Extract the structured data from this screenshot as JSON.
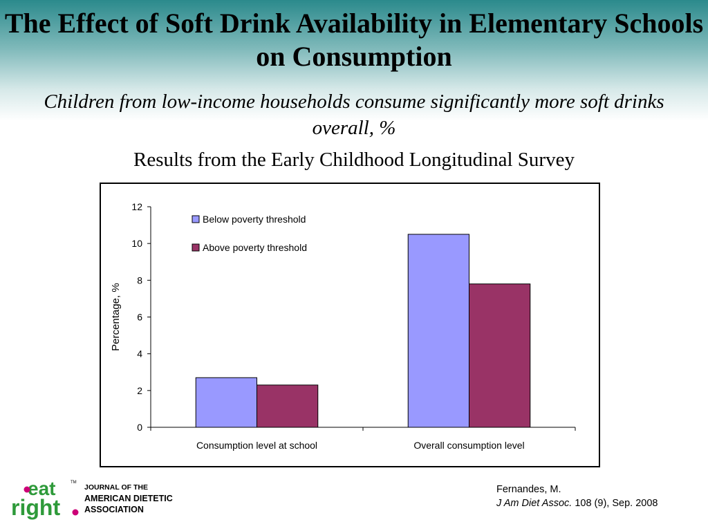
{
  "slide": {
    "title": "The Effect of Soft Drink Availability in Elementary Schools on Consumption",
    "subtitle": "Children from low-income households consume significantly more soft drinks overall, %",
    "caption": "Results from the Early Childhood Longitudinal Survey"
  },
  "colors": {
    "series_below": "#9999ff",
    "series_above": "#993366",
    "header_teal": "#2b8a8c",
    "logo_green": "#2e9a3a",
    "logo_magenta": "#cc0077"
  },
  "chart_data": {
    "type": "bar",
    "title": "",
    "xlabel": "",
    "ylabel": "Percentage, %",
    "ylim": [
      0,
      12
    ],
    "yticks": [
      0,
      2,
      4,
      6,
      8,
      10,
      12
    ],
    "categories": [
      "Consumption level at school",
      "Overall consumption level"
    ],
    "series": [
      {
        "name": "Below poverty threshold",
        "values": [
          2.7,
          10.5
        ]
      },
      {
        "name": "Above poverty threshold",
        "values": [
          2.3,
          7.8
        ]
      }
    ],
    "legend_position": "top-left",
    "grid": false
  },
  "footer": {
    "logo_text_top": "eat",
    "logo_text_bottom": "right",
    "logo_tm": "TM",
    "journal_line1": "JOURNAL OF THE",
    "journal_line2": "AMERICAN DIETETIC",
    "journal_line3": "ASSOCIATION",
    "citation_author": "Fernandes, M.",
    "citation_journal": "J Am Diet Assoc.",
    "citation_details": " 108 (9), Sep. 2008"
  }
}
